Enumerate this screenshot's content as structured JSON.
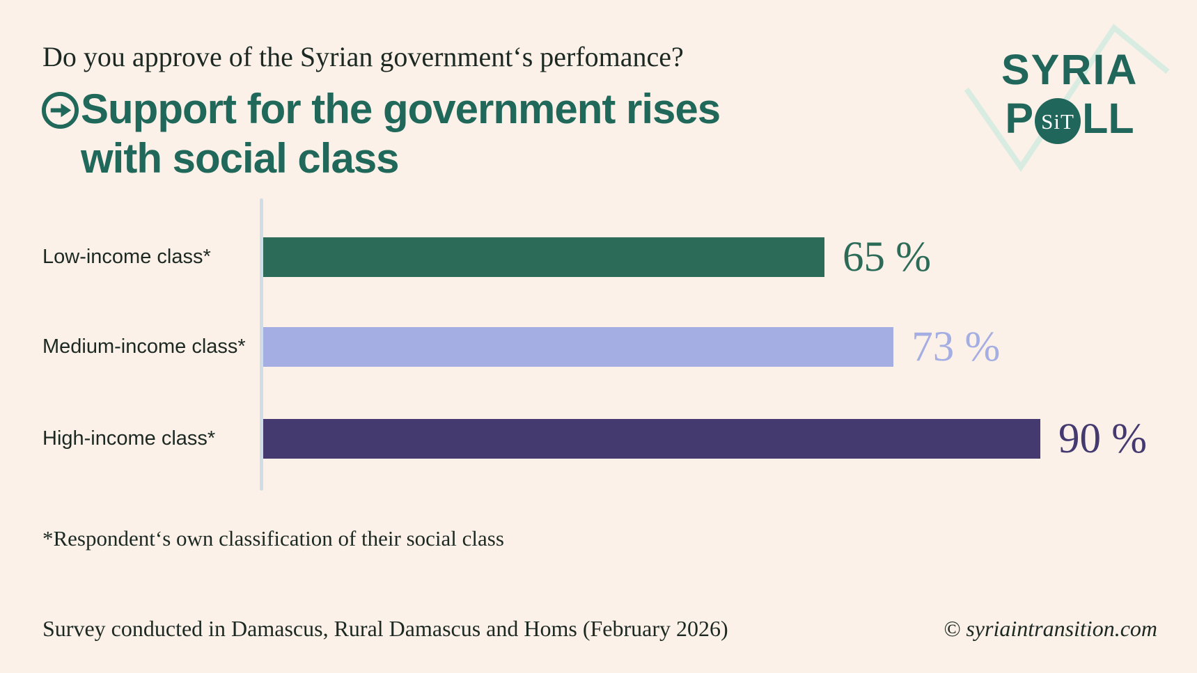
{
  "page": {
    "background_color": "#fcf1e8"
  },
  "header": {
    "question": "Do you approve of the Syrian government‘s perfomance?",
    "title_line1": "Support for the government rises",
    "title_line2": "with social class",
    "title_color": "#20685a",
    "arrow_icon": "circled-right-arrow-icon"
  },
  "logo": {
    "word1": "SYRIA",
    "word2_prefix": "P",
    "word2_suffix": "LL",
    "badge_text": "SiT",
    "color": "#21665a",
    "zigzag_color": "#d9ece2"
  },
  "chart_data": {
    "type": "bar",
    "orientation": "horizontal",
    "title": "Support for the government rises with social class",
    "categories": [
      "Low-income class*",
      "Medium-income class*",
      "High-income class*"
    ],
    "values": [
      65,
      73,
      90
    ],
    "value_labels": [
      "65 %",
      "73 %",
      "90 %"
    ],
    "bar_colors": [
      "#2b6b58",
      "#a5aee2",
      "#443a70"
    ],
    "xlim": [
      0,
      100
    ],
    "grid": false,
    "axis_line_color": "#cfdee6",
    "legend": "none"
  },
  "footnote": "*Respondent‘s own classification of their social class",
  "footer": {
    "survey_note": "Survey conducted in Damascus, Rural Damascus and Homs (February 2026)",
    "copyright": "© syriaintransition.com"
  }
}
